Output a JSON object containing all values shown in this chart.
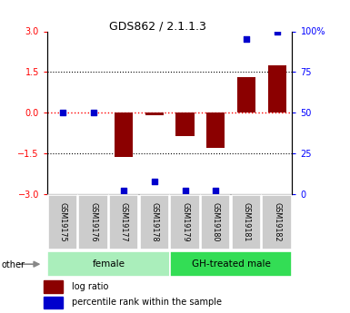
{
  "title": "GDS862 / 2.1.1.3",
  "samples": [
    "GSM19175",
    "GSM19176",
    "GSM19177",
    "GSM19178",
    "GSM19179",
    "GSM19180",
    "GSM19181",
    "GSM19182"
  ],
  "log_ratio": [
    0.0,
    0.0,
    -1.62,
    -0.1,
    -0.85,
    -1.3,
    1.32,
    1.75
  ],
  "percentile_rank": [
    50,
    50,
    2,
    8,
    2,
    2,
    95,
    100
  ],
  "bar_color": "#8B0000",
  "dot_color": "#0000CD",
  "ylim": [
    -3,
    3
  ],
  "yticks_left": [
    -3,
    -1.5,
    0,
    1.5,
    3
  ],
  "yticks_right": [
    0,
    25,
    50,
    75,
    100
  ],
  "groups": [
    {
      "label": "female",
      "start": 0,
      "end": 3,
      "color": "#AAEEBB"
    },
    {
      "label": "GH-treated male",
      "start": 4,
      "end": 7,
      "color": "#33DD55"
    }
  ],
  "legend_items": [
    {
      "label": "log ratio",
      "color": "#8B0000"
    },
    {
      "label": "percentile rank within the sample",
      "color": "#0000CD"
    }
  ],
  "other_label": "other",
  "bg_color": "#FFFFFF"
}
